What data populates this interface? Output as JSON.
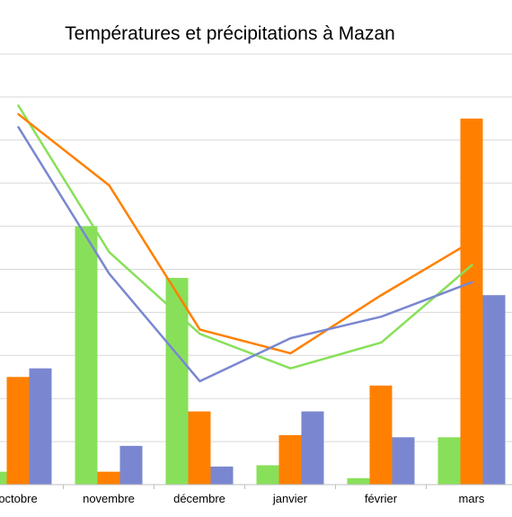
{
  "chart_data": {
    "type": "bar",
    "title": "Températures et précipitations à Mazan",
    "xlabel": "",
    "ylabel": "",
    "categories": [
      "octobre",
      "novembre",
      "décembre",
      "janvier",
      "février",
      "mars"
    ],
    "ylim": [
      0,
      100
    ],
    "grid": true,
    "bar_series": [
      {
        "color": "#88e05a",
        "values": [
          3,
          60,
          48,
          4.5,
          1.5,
          11
        ]
      },
      {
        "color": "#ff8000",
        "values": [
          25,
          3,
          17,
          11.5,
          23,
          85
        ]
      },
      {
        "color": "#7a87d0",
        "values": [
          27,
          9,
          4.2,
          17,
          11,
          44
        ]
      }
    ],
    "line_series": [
      {
        "color": "#88e05a",
        "values": [
          88,
          54,
          35,
          27,
          33,
          51
        ]
      },
      {
        "color": "#ff8000",
        "values": [
          86,
          69.5,
          36,
          30.5,
          44,
          56.5
        ]
      },
      {
        "color": "#7a87d0",
        "values": [
          83,
          49,
          24,
          34,
          39,
          47
        ]
      }
    ]
  }
}
